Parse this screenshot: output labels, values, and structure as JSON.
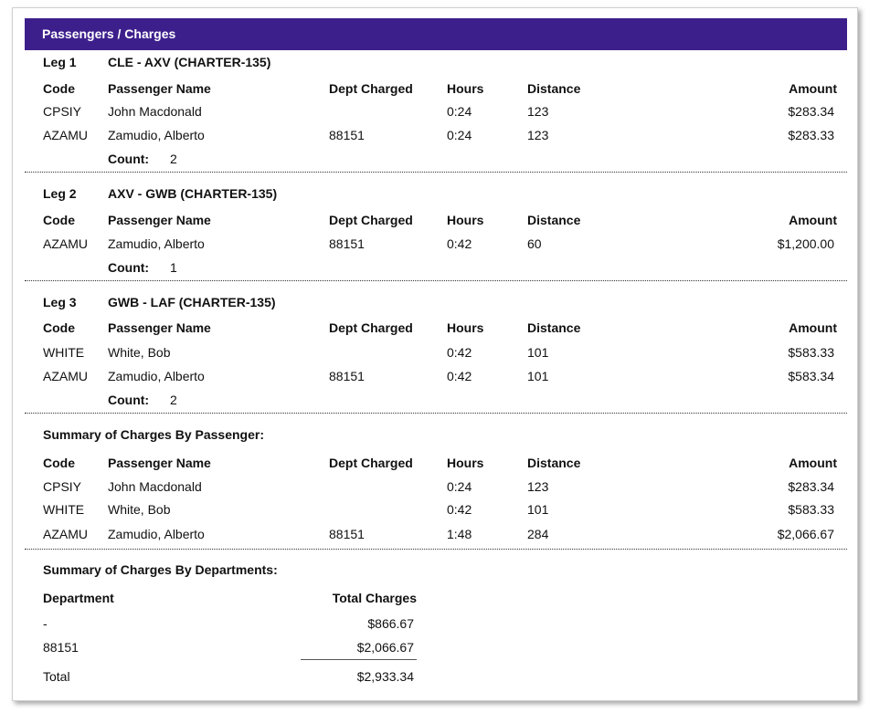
{
  "section_title": "Passengers / Charges",
  "columns": {
    "code": "Code",
    "passenger_name": "Passenger Name",
    "dept_charged": "Dept Charged",
    "hours": "Hours",
    "distance": "Distance",
    "amount": "Amount"
  },
  "count_label": "Count:",
  "legs": [
    {
      "label": "Leg 1",
      "route": "CLE - AXV (CHARTER-135)",
      "rows": [
        {
          "code": "CPSIY",
          "name": "John Macdonald",
          "dept": "",
          "hours": "0:24",
          "distance": "123",
          "amount": "$283.34"
        },
        {
          "code": "AZAMU",
          "name": "Zamudio, Alberto",
          "dept": "88151",
          "hours": "0:24",
          "distance": "123",
          "amount": "$283.33"
        }
      ],
      "count": "2"
    },
    {
      "label": "Leg 2",
      "route": "AXV - GWB (CHARTER-135)",
      "rows": [
        {
          "code": "AZAMU",
          "name": "Zamudio, Alberto",
          "dept": "88151",
          "hours": "0:42",
          "distance": "60",
          "amount": "$1,200.00"
        }
      ],
      "count": "1"
    },
    {
      "label": "Leg 3",
      "route": "GWB - LAF (CHARTER-135)",
      "rows": [
        {
          "code": "WHITE",
          "name": "White, Bob",
          "dept": "",
          "hours": "0:42",
          "distance": "101",
          "amount": "$583.33"
        },
        {
          "code": "AZAMU",
          "name": "Zamudio, Alberto",
          "dept": "88151",
          "hours": "0:42",
          "distance": "101",
          "amount": "$583.34"
        }
      ],
      "count": "2"
    }
  ],
  "summary_passenger": {
    "title": "Summary of Charges By Passenger:",
    "rows": [
      {
        "code": "CPSIY",
        "name": "John Macdonald",
        "dept": "",
        "hours": "0:24",
        "distance": "123",
        "amount": "$283.34"
      },
      {
        "code": "WHITE",
        "name": "White, Bob",
        "dept": "",
        "hours": "0:42",
        "distance": "101",
        "amount": "$583.33"
      },
      {
        "code": "AZAMU",
        "name": "Zamudio, Alberto",
        "dept": "88151",
        "hours": "1:48",
        "distance": "284",
        "amount": "$2,066.67"
      }
    ]
  },
  "summary_department": {
    "title": "Summary of Charges By Departments:",
    "col_department": "Department",
    "col_total": "Total Charges",
    "rows": [
      {
        "department": "-",
        "total": "$866.67"
      },
      {
        "department": "88151",
        "total": "$2,066.67"
      }
    ],
    "total_label": "Total",
    "total_value": "$2,933.34"
  }
}
